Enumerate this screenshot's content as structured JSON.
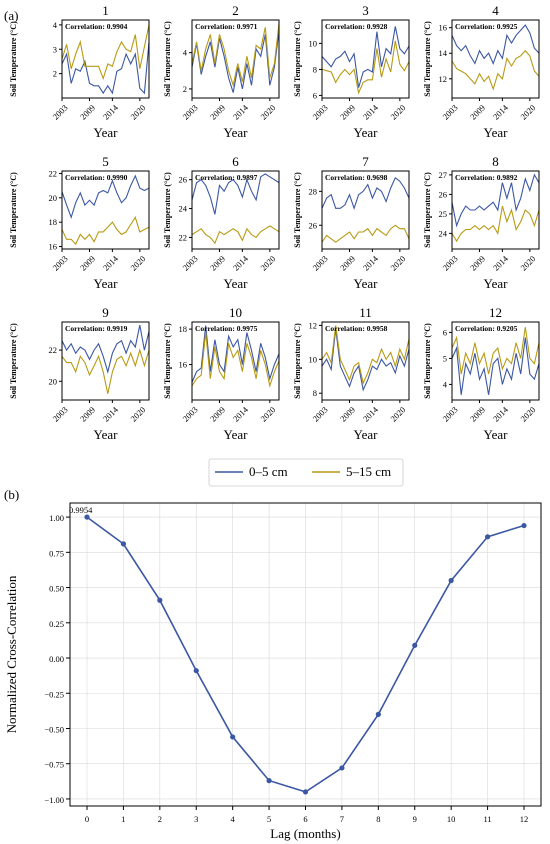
{
  "panel_a_label": "(a)",
  "panel_b_label": "(b)",
  "legend": {
    "series_a": "0–5 cm",
    "series_b": "5–15 cm"
  },
  "colors": {
    "series_a": "#3b57a4",
    "series_b": "#b89a14",
    "line_b": "#3b57a4"
  },
  "chart_data": [
    {
      "type": "line",
      "panels": [
        {
          "title": "1",
          "correlation": "Correlation: 0.9904",
          "ylim": [
            1,
            4.2
          ],
          "yticks": [
            2,
            3,
            4
          ],
          "s1": [
            2.4,
            2.8,
            1.6,
            2.2,
            2.1,
            2.5,
            1.6,
            1.5,
            1.5,
            1.2,
            1.5,
            1.2,
            2.1,
            2.2,
            2.8,
            2.4,
            2.8,
            1.4,
            1.2,
            3.3
          ],
          "s2": [
            2.6,
            3.2,
            2.2,
            2.8,
            3.3,
            2.3,
            2.3,
            2.3,
            2.3,
            1.8,
            2.4,
            2.3,
            2.9,
            3.3,
            3.0,
            2.9,
            3.6,
            2.2,
            3.1,
            4.0
          ]
        },
        {
          "title": "2",
          "correlation": "Correlation: 0.9971",
          "ylim": [
            1.5,
            5.8
          ],
          "yticks": [
            2,
            4
          ],
          "s1": [
            3.2,
            4.5,
            2.8,
            3.8,
            4.6,
            3.2,
            4.8,
            3.8,
            2.6,
            1.8,
            3.2,
            2.0,
            3.4,
            2.2,
            4.2,
            3.8,
            5.0,
            2.2,
            3.2,
            5.2
          ],
          "s2": [
            3.4,
            4.6,
            3.0,
            4.2,
            5.0,
            3.4,
            5.0,
            4.2,
            3.0,
            2.2,
            3.4,
            2.4,
            3.8,
            2.6,
            4.4,
            4.2,
            5.4,
            2.6,
            3.4,
            5.6
          ]
        },
        {
          "title": "3",
          "correlation": "Correlation: 0.9928",
          "ylim": [
            5.8,
            11.8
          ],
          "yticks": [
            6,
            8,
            10
          ],
          "s1": [
            9.0,
            8.6,
            8.2,
            8.8,
            9.0,
            9.4,
            8.6,
            9.2,
            6.6,
            7.8,
            8.0,
            7.8,
            10.9,
            8.2,
            9.6,
            9.2,
            11.3,
            9.6,
            9.2,
            9.8
          ],
          "s2": [
            8.0,
            7.9,
            7.8,
            7.0,
            7.6,
            8.0,
            7.6,
            8.0,
            6.2,
            7.0,
            7.2,
            7.2,
            9.6,
            7.4,
            8.8,
            7.8,
            10.2,
            8.4,
            7.9,
            8.6
          ],
          "ylabel_only": true
        },
        {
          "title": "4",
          "correlation": "Correlation: 0.9925",
          "ylim": [
            10.5,
            16.6
          ],
          "yticks": [
            12,
            14,
            16
          ],
          "s1": [
            15.4,
            14.6,
            14.2,
            14.6,
            13.8,
            13.2,
            14.2,
            13.6,
            14.0,
            13.2,
            14.2,
            13.6,
            15.4,
            14.8,
            15.4,
            15.8,
            16.2,
            15.6,
            14.4,
            14.0
          ],
          "s2": [
            13.4,
            12.8,
            12.6,
            12.4,
            12.0,
            11.6,
            12.4,
            11.8,
            12.2,
            11.2,
            12.4,
            12.0,
            13.6,
            13.0,
            13.6,
            13.8,
            14.2,
            13.8,
            12.6,
            12.2
          ]
        },
        {
          "title": "5",
          "correlation": "Correlation: 0.9990",
          "ylim": [
            15.8,
            22.2
          ],
          "yticks": [
            16,
            18,
            20,
            22
          ],
          "s1": [
            20.5,
            19.4,
            18.4,
            19.6,
            20.4,
            19.4,
            19.8,
            19.4,
            20.4,
            20.6,
            20.4,
            21.4,
            20.4,
            19.6,
            20.0,
            21.0,
            21.8,
            20.8,
            20.6,
            20.8
          ],
          "s2": [
            17.4,
            16.6,
            16.6,
            16.2,
            17.0,
            16.6,
            17.0,
            16.4,
            17.2,
            17.2,
            17.6,
            18.0,
            17.4,
            17.0,
            17.2,
            17.8,
            18.4,
            17.2,
            17.4,
            17.6
          ]
        },
        {
          "title": "6",
          "correlation": "Correlation: 0.9897",
          "ylim": [
            21.2,
            26.6
          ],
          "yticks": [
            22,
            24,
            26
          ],
          "s1": [
            24.6,
            25.8,
            26.0,
            25.6,
            24.8,
            23.6,
            25.6,
            25.2,
            25.8,
            26.0,
            25.6,
            24.8,
            26.0,
            25.2,
            24.6,
            26.2,
            26.4,
            26.2,
            26.0,
            25.8
          ],
          "s2": [
            22.2,
            22.4,
            22.6,
            22.2,
            22.0,
            21.6,
            22.4,
            22.2,
            22.4,
            22.6,
            22.4,
            21.8,
            22.6,
            22.2,
            22.0,
            22.4,
            22.6,
            22.8,
            22.6,
            22.4
          ],
          "ylabel_only": true
        },
        {
          "title": "7",
          "correlation": "Correlation: 0.9698",
          "ylim": [
            24.6,
            29.2
          ],
          "yticks": [
            26,
            28
          ],
          "s1": [
            27.0,
            27.6,
            27.8,
            27.0,
            27.0,
            27.2,
            27.8,
            27.0,
            27.8,
            28.0,
            28.4,
            27.6,
            28.2,
            28.0,
            27.4,
            28.2,
            28.8,
            28.6,
            28.2,
            27.6
          ],
          "s2": [
            25.0,
            25.4,
            25.2,
            25.0,
            25.2,
            25.4,
            25.6,
            25.2,
            25.6,
            25.6,
            25.8,
            25.4,
            25.8,
            25.6,
            25.4,
            25.8,
            26.0,
            25.8,
            25.8,
            25.2
          ],
          "ylabel_only": true
        },
        {
          "title": "8",
          "correlation": "Correlation: 0.9892",
          "ylim": [
            23.2,
            27.2
          ],
          "yticks": [
            24,
            25,
            26,
            27
          ],
          "s1": [
            25.6,
            24.4,
            25.0,
            25.4,
            25.2,
            25.2,
            25.4,
            25.2,
            25.4,
            25.6,
            25.2,
            26.6,
            25.8,
            26.6,
            25.2,
            25.8,
            26.8,
            26.2,
            27.0,
            26.6
          ],
          "s2": [
            24.0,
            23.6,
            24.0,
            24.2,
            24.2,
            24.4,
            24.2,
            24.4,
            24.2,
            24.4,
            24.0,
            25.4,
            24.6,
            25.2,
            24.2,
            24.6,
            25.2,
            25.0,
            24.4,
            25.2
          ]
        },
        {
          "title": "9",
          "correlation": "Correlation: 0.9919",
          "ylim": [
            18.8,
            23.8
          ],
          "yticks": [
            20,
            22
          ],
          "s1": [
            22.6,
            22.0,
            22.4,
            21.8,
            22.2,
            22.0,
            21.4,
            22.0,
            22.4,
            21.6,
            20.6,
            21.8,
            22.4,
            22.6,
            21.8,
            22.6,
            22.2,
            23.6,
            22.0,
            23.2
          ],
          "s2": [
            21.6,
            21.2,
            21.2,
            20.6,
            21.6,
            21.2,
            20.4,
            21.0,
            21.6,
            20.6,
            19.2,
            20.6,
            21.4,
            21.6,
            21.0,
            21.8,
            21.0,
            22.0,
            21.0,
            22.0
          ]
        },
        {
          "title": "10",
          "correlation": "Correlation: 0.9975",
          "ylim": [
            14.0,
            18.4
          ],
          "yticks": [
            16,
            18
          ],
          "s1": [
            15.0,
            15.6,
            15.8,
            18.2,
            15.6,
            17.4,
            16.0,
            15.6,
            17.6,
            17.0,
            17.4,
            16.0,
            17.8,
            16.8,
            15.6,
            17.2,
            16.4,
            15.2,
            16.0,
            16.6
          ],
          "s2": [
            14.8,
            15.2,
            15.4,
            17.8,
            15.2,
            17.0,
            15.6,
            15.2,
            17.2,
            16.4,
            16.8,
            15.6,
            17.2,
            16.4,
            15.2,
            16.8,
            16.0,
            14.8,
            15.6,
            16.2
          ]
        },
        {
          "title": "11",
          "correlation": "Correlation: 0.9958",
          "ylim": [
            7.6,
            12.2
          ],
          "yticks": [
            8,
            10,
            12
          ],
          "s1": [
            9.6,
            10.0,
            9.4,
            11.8,
            9.6,
            9.0,
            8.4,
            9.2,
            9.6,
            8.2,
            8.8,
            9.6,
            9.4,
            10.0,
            9.6,
            9.8,
            9.2,
            10.2,
            9.6,
            10.6
          ],
          "s2": [
            10.0,
            10.4,
            9.8,
            12.0,
            10.0,
            9.4,
            8.8,
            9.6,
            9.8,
            8.6,
            9.2,
            10.0,
            9.8,
            10.6,
            10.0,
            10.4,
            9.6,
            10.6,
            10.0,
            11.2
          ]
        },
        {
          "title": "12",
          "correlation": "Correlation: 0.9205",
          "ylim": [
            3.4,
            6.4
          ],
          "yticks": [
            4,
            5,
            6
          ],
          "s1": [
            5.0,
            5.4,
            3.6,
            4.8,
            4.4,
            5.2,
            4.2,
            4.6,
            3.6,
            4.8,
            5.0,
            4.0,
            4.6,
            4.2,
            5.2,
            4.4,
            5.8,
            4.4,
            4.2,
            4.8
          ],
          "s2": [
            5.4,
            5.8,
            4.4,
            5.2,
            4.8,
            5.6,
            4.8,
            5.2,
            4.4,
            5.2,
            5.4,
            4.6,
            5.0,
            4.8,
            5.6,
            5.0,
            6.2,
            5.0,
            4.8,
            5.6
          ]
        }
      ],
      "xticks": [
        "2003",
        "2009",
        "2014",
        "2020"
      ],
      "xlabel": "Year",
      "ylabel": "Soil Temperature (°C)"
    },
    {
      "type": "line",
      "x": [
        0,
        1,
        2,
        3,
        4,
        5,
        6,
        7,
        8,
        9,
        10,
        11,
        12
      ],
      "values": [
        1.0,
        0.81,
        0.41,
        -0.09,
        -0.56,
        -0.87,
        -0.95,
        -0.78,
        -0.4,
        0.09,
        0.55,
        0.86,
        0.94
      ],
      "annotation": "0.9954",
      "xlabel": "Lag (months)",
      "ylabel": "Normalized Cross-Correlation",
      "ylim": [
        -1.05,
        1.1
      ],
      "yticks": [
        "1.00",
        "0.75",
        "0.50",
        "0.25",
        "0.00",
        "−0.25",
        "−0.50",
        "−0.75",
        "−1.00"
      ],
      "ytick_values": [
        1.0,
        0.75,
        0.5,
        0.25,
        0,
        -0.25,
        -0.5,
        -0.75,
        -1.0
      ],
      "grid": true
    }
  ]
}
